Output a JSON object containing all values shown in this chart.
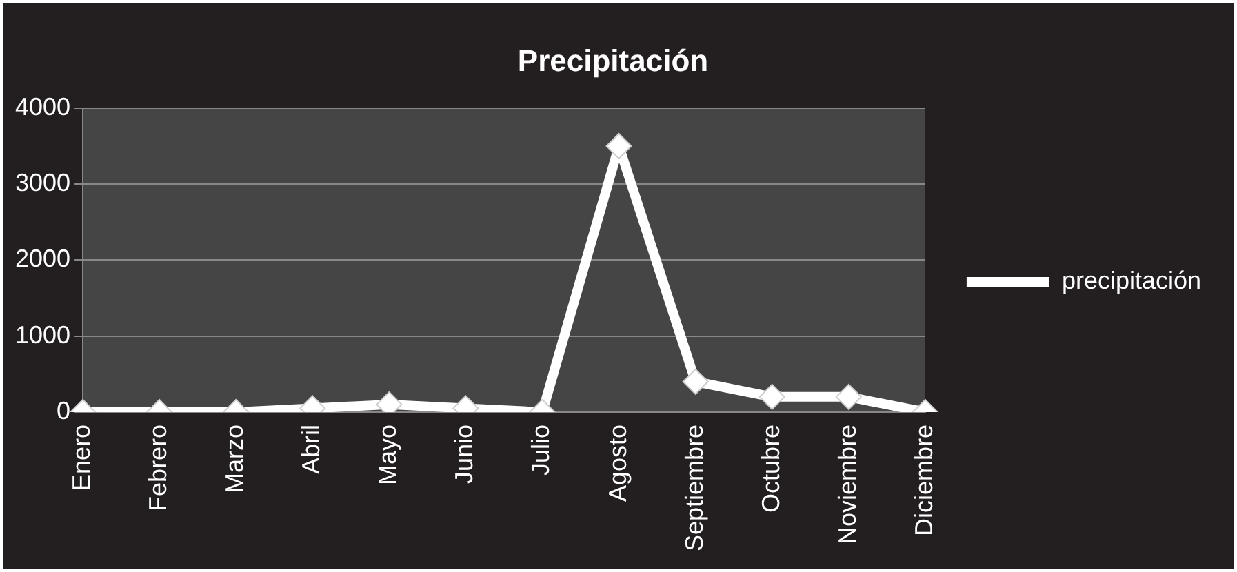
{
  "chart_data": {
    "type": "line",
    "title": "Precipitación",
    "categories": [
      "Enero",
      "Febrero",
      "Marzo",
      "Abril",
      "Mayo",
      "Junio",
      "Julio",
      "Agosto",
      "Septiembre",
      "Octubre",
      "Noviembre",
      "Diciembre"
    ],
    "series": [
      {
        "name": "precipitación",
        "color": "#ffffff",
        "values": [
          0,
          0,
          0,
          50,
          100,
          50,
          0,
          3500,
          400,
          200,
          200,
          0
        ]
      }
    ],
    "ylim": [
      0,
      4000
    ],
    "yticks": [
      0,
      1000,
      2000,
      3000,
      4000
    ],
    "grid": "y",
    "legend": "right",
    "marker": "diamond",
    "line_style": "solid"
  }
}
